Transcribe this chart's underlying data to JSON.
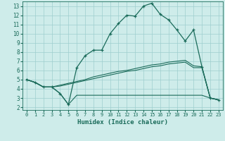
{
  "xlabel": "Humidex (Indice chaleur)",
  "bg_color": "#ceecea",
  "grid_color": "#9ecece",
  "line_color": "#1a6b5a",
  "xlim": [
    -0.5,
    23.5
  ],
  "ylim": [
    1.7,
    13.5
  ],
  "xticks": [
    0,
    1,
    2,
    3,
    4,
    5,
    6,
    7,
    8,
    9,
    10,
    11,
    12,
    13,
    14,
    15,
    16,
    17,
    18,
    19,
    20,
    21,
    22,
    23
  ],
  "yticks": [
    2,
    3,
    4,
    5,
    6,
    7,
    8,
    9,
    10,
    11,
    12,
    13
  ],
  "line1_x": [
    0,
    1,
    2,
    3,
    4,
    5,
    6,
    7,
    8,
    9,
    10,
    11,
    12,
    13,
    14,
    15,
    16,
    17,
    18,
    19,
    20,
    21,
    22,
    23
  ],
  "line1_y": [
    5.0,
    4.7,
    4.2,
    4.2,
    3.5,
    2.3,
    6.3,
    7.6,
    8.2,
    8.2,
    10.0,
    11.1,
    12.0,
    11.9,
    13.0,
    13.3,
    12.1,
    11.5,
    10.4,
    9.2,
    10.4,
    6.4,
    3.0,
    2.8
  ],
  "line2_x": [
    0,
    1,
    2,
    3,
    4,
    5,
    6,
    7,
    8,
    9,
    10,
    11,
    12,
    13,
    14,
    15,
    16,
    17,
    18,
    19,
    20,
    21,
    22,
    23
  ],
  "line2_y": [
    5.0,
    4.7,
    4.2,
    4.2,
    3.5,
    2.3,
    3.3,
    3.3,
    3.3,
    3.3,
    3.3,
    3.3,
    3.3,
    3.3,
    3.3,
    3.3,
    3.3,
    3.3,
    3.3,
    3.3,
    3.3,
    3.3,
    3.0,
    2.8
  ],
  "line3_x": [
    0,
    1,
    2,
    3,
    4,
    5,
    6,
    7,
    8,
    9,
    10,
    11,
    12,
    13,
    14,
    15,
    16,
    17,
    18,
    19,
    20,
    21,
    22,
    23
  ],
  "line3_y": [
    5.0,
    4.7,
    4.2,
    4.2,
    4.3,
    4.5,
    4.7,
    4.9,
    5.1,
    5.3,
    5.5,
    5.7,
    5.9,
    6.0,
    6.2,
    6.4,
    6.5,
    6.7,
    6.8,
    6.9,
    6.3,
    6.3,
    3.0,
    2.8
  ],
  "line4_x": [
    0,
    1,
    2,
    3,
    4,
    5,
    6,
    7,
    8,
    9,
    10,
    11,
    12,
    13,
    14,
    15,
    16,
    17,
    18,
    19,
    20,
    21,
    22,
    23
  ],
  "line4_y": [
    5.0,
    4.7,
    4.2,
    4.2,
    4.4,
    4.6,
    4.8,
    5.0,
    5.3,
    5.5,
    5.7,
    5.9,
    6.0,
    6.2,
    6.4,
    6.6,
    6.7,
    6.9,
    7.0,
    7.1,
    6.5,
    6.4,
    3.0,
    2.8
  ]
}
